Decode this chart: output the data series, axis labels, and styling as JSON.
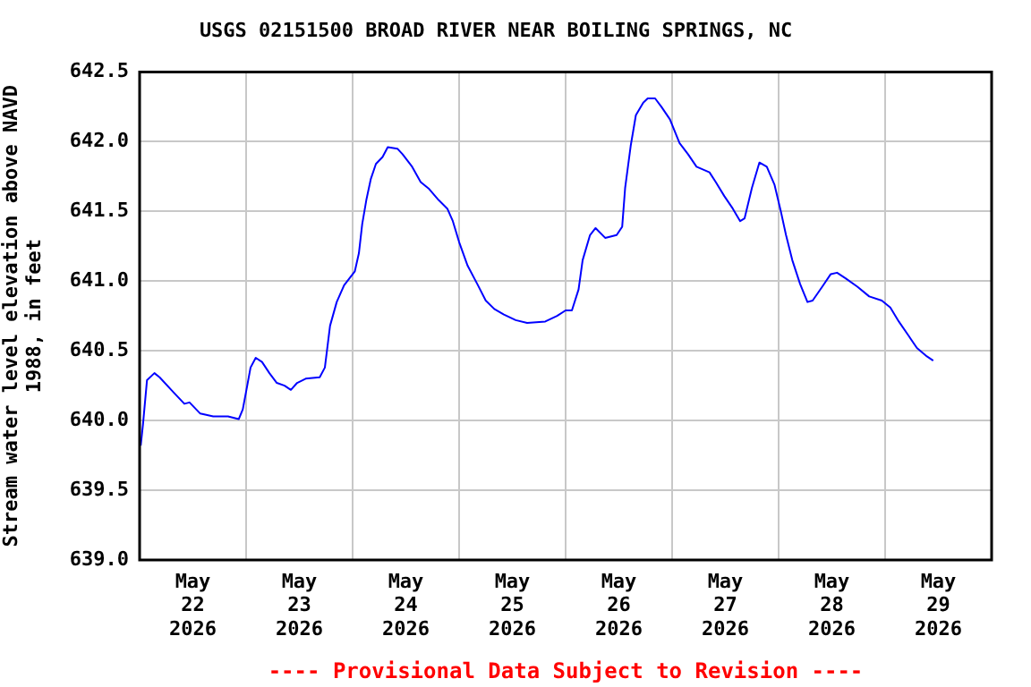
{
  "chart_data": {
    "type": "line",
    "title": "USGS 02151500 BROAD RIVER NEAR BOILING SPRINGS, NC",
    "ylabel": "Stream water level elevation above NAVD\n1988, in feet",
    "annotations": [
      "---- Provisional Data Subject to Revision ----"
    ],
    "xlim": [
      "2026-05-22",
      "2026-05-30"
    ],
    "xticks": [
      {
        "value": "2026-05-22T12:00",
        "label": "May 22 2026"
      },
      {
        "value": "2026-05-23",
        "label": null
      },
      {
        "value": "2026-05-23T12:00",
        "label": "May 23 2026"
      },
      {
        "value": "2026-05-24",
        "label": null
      },
      {
        "value": "2026-05-24T12:00",
        "label": "May 24 2026"
      },
      {
        "value": "2026-05-25",
        "label": null
      },
      {
        "value": "2026-05-25T12:00",
        "label": "May 25 2026"
      },
      {
        "value": "2026-05-26",
        "label": null
      },
      {
        "value": "2026-05-26T12:00",
        "label": "May 26 2026"
      },
      {
        "value": "2026-05-27",
        "label": null
      },
      {
        "value": "2026-05-27T12:00",
        "label": "May 27 2026"
      },
      {
        "value": "2026-05-28",
        "label": null
      },
      {
        "value": "2026-05-28T12:00",
        "label": "May 28 2026"
      },
      {
        "value": "2026-05-29",
        "label": null
      },
      {
        "value": "2026-05-29T12:00",
        "label": "May 29 2026"
      }
    ],
    "ylim": [
      639,
      642.5
    ],
    "yticks": [
      {
        "value": 639,
        "label": "639.0"
      },
      {
        "value": 639.5,
        "label": "639.5"
      },
      {
        "value": 640,
        "label": "640.0"
      },
      {
        "value": 640.5,
        "label": "640.5"
      },
      {
        "value": 641,
        "label": "641.0"
      },
      {
        "value": 641.5,
        "label": "641.5"
      },
      {
        "value": 642,
        "label": "642.0"
      },
      {
        "value": 642.5,
        "label": "642.5"
      }
    ],
    "grid": true,
    "legend": false,
    "marker": "none",
    "line_style": "solid",
    "series": [
      {
        "color": "#0000ff",
        "x": [
          "2026-05-22T00:15",
          "2026-05-22T00:45",
          "2026-05-22T01:40",
          "2026-05-22T03:20",
          "2026-05-22T04:30",
          "2026-05-22T07:25",
          "2026-05-22T10:05",
          "2026-05-22T11:15",
          "2026-05-22T13:40",
          "2026-05-22T16:35",
          "2026-05-22T19:55",
          "2026-05-22T22:20",
          "2026-05-22T23:15",
          "2026-05-23T00:15",
          "2026-05-23T01:00",
          "2026-05-23T02:10",
          "2026-05-23T03:35",
          "2026-05-23T05:15",
          "2026-05-23T06:55",
          "2026-05-23T08:40",
          "2026-05-23T10:05",
          "2026-05-23T11:30",
          "2026-05-23T13:25",
          "2026-05-23T16:35",
          "2026-05-23T17:45",
          "2026-05-23T18:55",
          "2026-05-23T20:25",
          "2026-05-23T22:05",
          "2026-05-24T00:30",
          "2026-05-24T01:25",
          "2026-05-24T02:10",
          "2026-05-24T03:05",
          "2026-05-24T04:05",
          "2026-05-24T05:15",
          "2026-05-24T06:45",
          "2026-05-24T07:55",
          "2026-05-24T10:05",
          "2026-05-24T11:15",
          "2026-05-24T13:25",
          "2026-05-24T15:20",
          "2026-05-24T17:15",
          "2026-05-24T19:25",
          "2026-05-24T21:20",
          "2026-05-24T22:35",
          "2026-05-25T00:00",
          "2026-05-25T01:55",
          "2026-05-25T04:05",
          "2026-05-25T06:00",
          "2026-05-25T07:55",
          "2026-05-25T10:05",
          "2026-05-25T12:45",
          "2026-05-25T15:20",
          "2026-05-25T19:25",
          "2026-05-25T22:05",
          "2026-05-26T00:00",
          "2026-05-26T01:25",
          "2026-05-26T02:55",
          "2026-05-26T03:50",
          "2026-05-26T05:30",
          "2026-05-26T06:45",
          "2026-05-26T08:55",
          "2026-05-26T11:30",
          "2026-05-26T12:45",
          "2026-05-26T13:25",
          "2026-05-26T14:40",
          "2026-05-26T15:50",
          "2026-05-26T17:30",
          "2026-05-26T18:30",
          "2026-05-26T20:10",
          "2026-05-26T21:35",
          "2026-05-26T23:30",
          "2026-05-27T01:40",
          "2026-05-27T03:35",
          "2026-05-27T05:30",
          "2026-05-27T08:25",
          "2026-05-27T09:50",
          "2026-05-27T11:45",
          "2026-05-27T13:40",
          "2026-05-27T15:20",
          "2026-05-27T16:20",
          "2026-05-27T18:00",
          "2026-05-27T19:40",
          "2026-05-27T21:20",
          "2026-05-27T23:05",
          "2026-05-28T00:30",
          "2026-05-28T01:40",
          "2026-05-28T03:05",
          "2026-05-28T04:50",
          "2026-05-28T06:30",
          "2026-05-28T07:40",
          "2026-05-28T09:50",
          "2026-05-28T11:45",
          "2026-05-28T13:10",
          "2026-05-28T15:05",
          "2026-05-28T17:45",
          "2026-05-28T20:25",
          "2026-05-28T23:15",
          "2026-05-29T01:10",
          "2026-05-29T03:05",
          "2026-05-29T05:15",
          "2026-05-29T07:10",
          "2026-05-29T09:25",
          "2026-05-29T10:50"
        ],
        "values": [
          639.82,
          639.97,
          640.29,
          640.34,
          640.31,
          640.21,
          640.12,
          640.13,
          640.05,
          640.03,
          640.03,
          640.01,
          640.08,
          640.25,
          640.38,
          640.45,
          640.42,
          640.34,
          640.27,
          640.25,
          640.22,
          640.27,
          640.3,
          640.31,
          640.38,
          640.68,
          640.85,
          640.97,
          641.07,
          641.2,
          641.41,
          641.58,
          641.73,
          641.84,
          641.89,
          641.96,
          641.95,
          641.91,
          641.82,
          641.71,
          641.66,
          641.58,
          641.52,
          641.43,
          641.28,
          641.11,
          640.98,
          640.86,
          640.8,
          640.76,
          640.72,
          640.7,
          640.71,
          640.75,
          640.79,
          640.79,
          640.94,
          641.15,
          641.33,
          641.38,
          641.31,
          641.33,
          641.39,
          641.67,
          641.97,
          642.19,
          642.28,
          642.31,
          642.31,
          642.25,
          642.16,
          641.99,
          641.91,
          641.82,
          641.78,
          641.71,
          641.61,
          641.52,
          641.43,
          641.45,
          641.67,
          641.85,
          641.82,
          641.69,
          641.5,
          641.33,
          641.15,
          640.98,
          640.85,
          640.86,
          640.96,
          641.05,
          641.06,
          641.02,
          640.96,
          640.89,
          640.86,
          640.81,
          640.71,
          640.61,
          640.52,
          640.46,
          640.43
        ]
      }
    ]
  }
}
